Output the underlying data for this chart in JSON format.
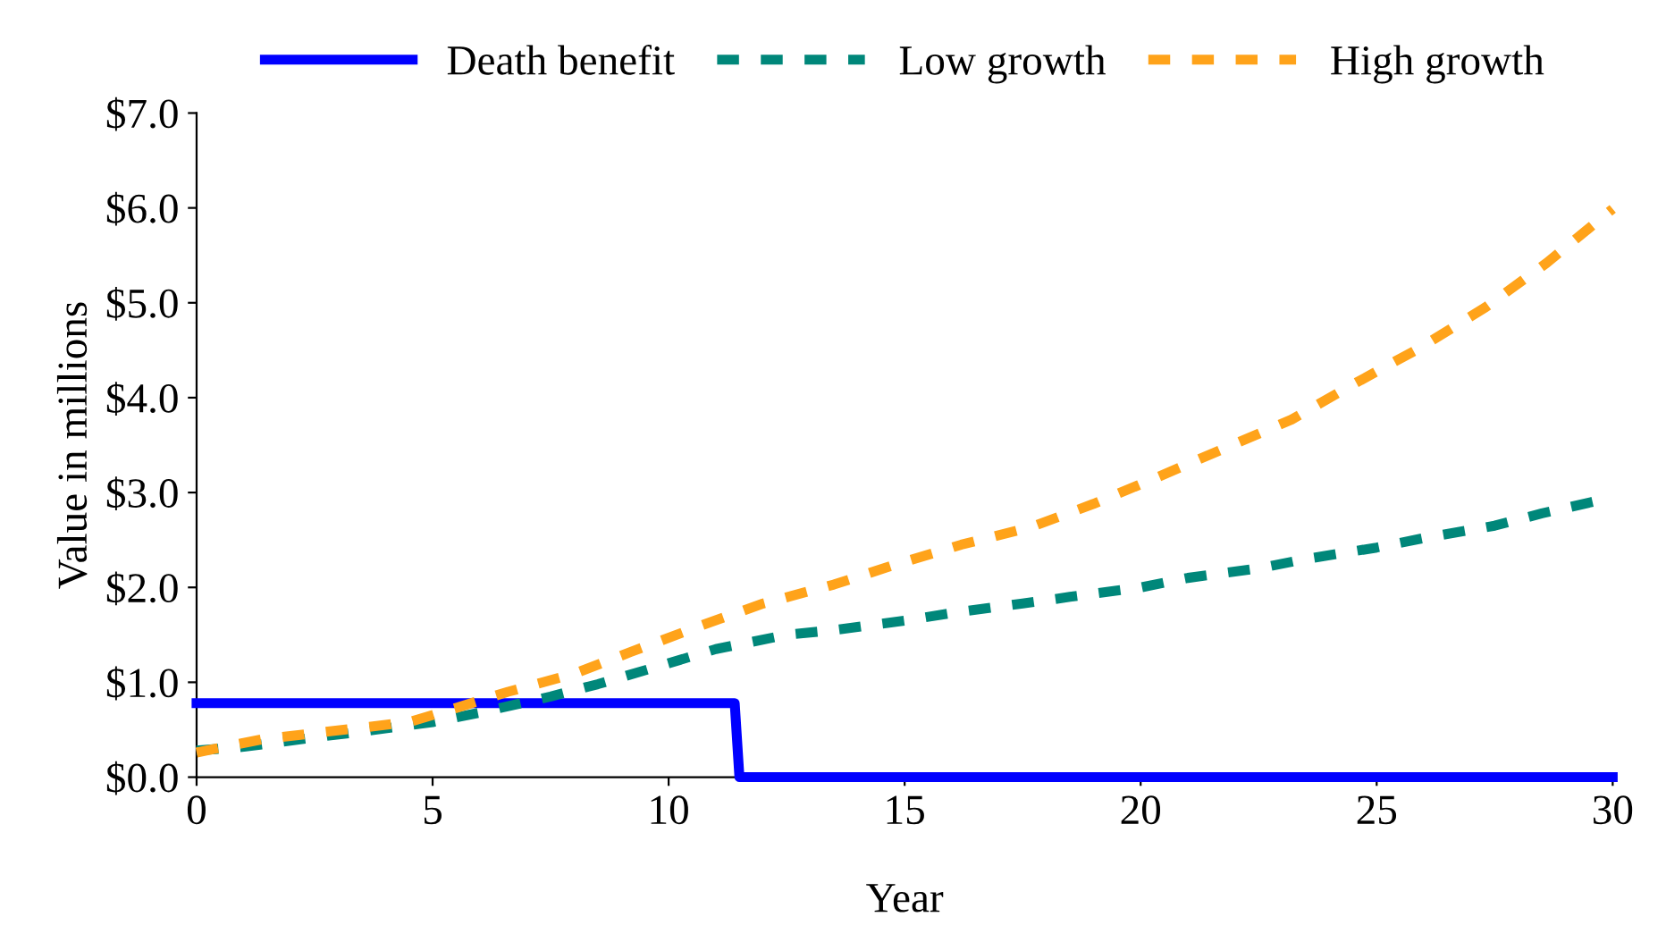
{
  "chart_data": {
    "type": "line",
    "xlabel": "Year",
    "ylabel": "Value in millions",
    "legend": "top",
    "grid": false,
    "xlim": [
      0,
      30
    ],
    "xticks": [
      0,
      5,
      10,
      15,
      20,
      25,
      30
    ],
    "ylim": [
      0,
      7
    ],
    "yticks": [
      {
        "value": 0,
        "label": "$0.0"
      },
      {
        "value": 1,
        "label": "$1.0"
      },
      {
        "value": 2,
        "label": "$2.0"
      },
      {
        "value": 3,
        "label": "$3.0"
      },
      {
        "value": 4,
        "label": "$4.0"
      },
      {
        "value": 5,
        "label": "$5.0"
      },
      {
        "value": 6,
        "label": "$6.0"
      },
      {
        "value": 7,
        "label": "$7.0"
      }
    ],
    "series": [
      {
        "name": "Death benefit",
        "color": "#0000ff",
        "line_style": "solid",
        "x": [
          0,
          11.4,
          11.5,
          30
        ],
        "values": [
          0.78,
          0.78,
          0,
          0
        ]
      },
      {
        "name": "Low growth",
        "color": "#00877a",
        "line_style": "dashed",
        "x": [
          0,
          1,
          2.5,
          3.5,
          5,
          6,
          7.5,
          8.5,
          10,
          11,
          12.5,
          13.5,
          15,
          16,
          17.5,
          18.5,
          20,
          21,
          22.5,
          23.5,
          25,
          26,
          27.5,
          28.5,
          30
        ],
        "values": [
          0.28,
          0.32,
          0.42,
          0.48,
          0.58,
          0.68,
          0.85,
          0.98,
          1.2,
          1.35,
          1.5,
          1.55,
          1.65,
          1.73,
          1.83,
          1.9,
          2.0,
          2.1,
          2.2,
          2.3,
          2.42,
          2.52,
          2.65,
          2.78,
          2.95
        ]
      },
      {
        "name": "High growth",
        "color": "#ffa31a",
        "line_style": "dashed",
        "x": [
          0,
          1.4,
          4.5,
          5.5,
          6.6,
          8,
          9.2,
          10.7,
          12,
          13.5,
          14.8,
          16.2,
          17.7,
          19,
          20.3,
          21.7,
          23.2,
          24.5,
          25.9,
          27.3,
          28.6,
          30
        ],
        "values": [
          0.26,
          0.4,
          0.58,
          0.73,
          0.9,
          1.09,
          1.32,
          1.6,
          1.83,
          2.03,
          2.24,
          2.45,
          2.64,
          2.88,
          3.15,
          3.45,
          3.77,
          4.14,
          4.52,
          4.95,
          5.42,
          5.99
        ]
      }
    ]
  }
}
